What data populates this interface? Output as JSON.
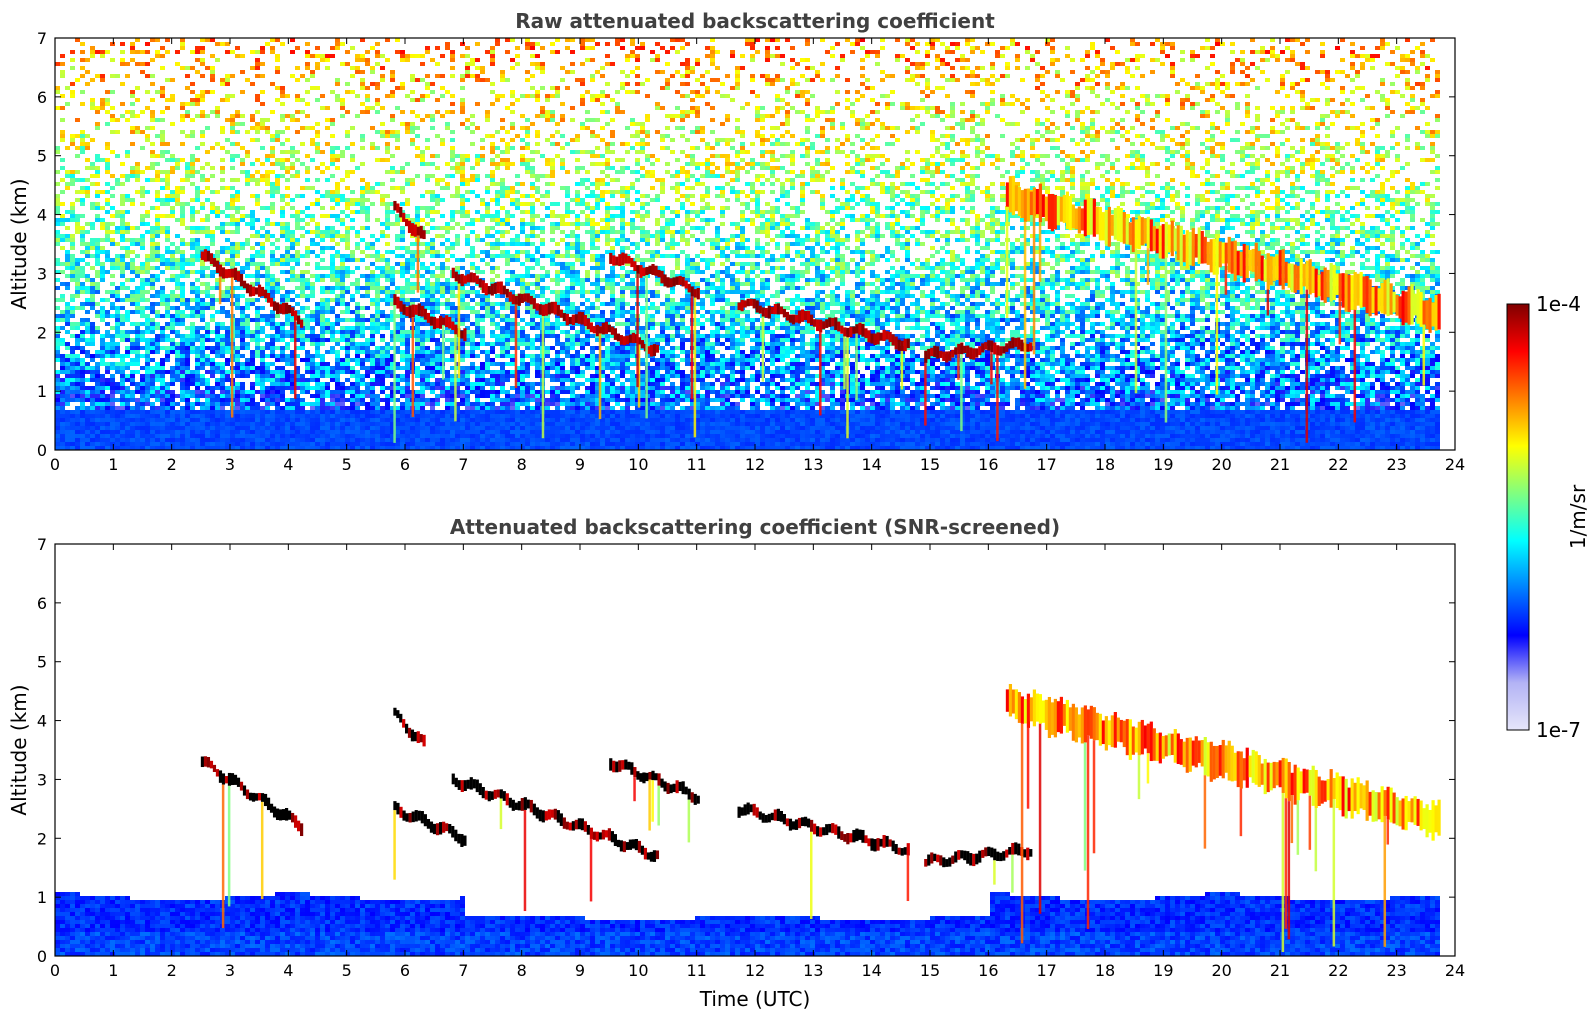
{
  "chart_data": [
    {
      "type": "heatmap",
      "title": "Raw attenuated backscattering coefficient",
      "xlabel": "",
      "ylabel": "Altitude (km)",
      "xlim": [
        0,
        24
      ],
      "ylim": [
        0,
        7
      ],
      "xticks": [
        "0",
        "1",
        "2",
        "3",
        "4",
        "5",
        "6",
        "7",
        "8",
        "9",
        "10",
        "11",
        "12",
        "13",
        "14",
        "15",
        "16",
        "17",
        "18",
        "19",
        "20",
        "21",
        "22",
        "23",
        "24"
      ],
      "yticks": [
        "0",
        "1",
        "2",
        "3",
        "4",
        "5",
        "6",
        "7"
      ],
      "data_end_time": 23.7,
      "noisy_background": true,
      "cloud_layers": [
        {
          "t": [
            2.5,
            4.2
          ],
          "alt_start": 3.3,
          "alt_end": 2.2,
          "intensity": "high"
        },
        {
          "t": [
            5.8,
            6.3
          ],
          "alt_start": 4.1,
          "alt_end": 3.6,
          "intensity": "high"
        },
        {
          "t": [
            5.8,
            7.0
          ],
          "alt_start": 2.5,
          "alt_end": 2.0,
          "intensity": "high"
        },
        {
          "t": [
            6.8,
            10.3
          ],
          "alt_start": 3.0,
          "alt_end": 1.7,
          "intensity": "high"
        },
        {
          "t": [
            9.5,
            11.0
          ],
          "alt_start": 3.3,
          "alt_end": 2.7,
          "intensity": "high"
        },
        {
          "t": [
            11.7,
            14.6
          ],
          "alt_start": 2.5,
          "alt_end": 1.8,
          "intensity": "high"
        },
        {
          "t": [
            14.9,
            16.7
          ],
          "alt_start": 1.6,
          "alt_end": 1.8,
          "intensity": "high"
        },
        {
          "t": [
            16.3,
            23.7
          ],
          "alt_start": 4.3,
          "alt_end": 2.3,
          "intensity": "medium"
        }
      ]
    },
    {
      "type": "heatmap",
      "title": "Attenuated backscattering coefficient (SNR-screened)",
      "xlabel": "Time (UTC)",
      "ylabel": "Altitude (km)",
      "xlim": [
        0,
        24
      ],
      "ylim": [
        0,
        7
      ],
      "xticks": [
        "0",
        "1",
        "2",
        "3",
        "4",
        "5",
        "6",
        "7",
        "8",
        "9",
        "10",
        "11",
        "12",
        "13",
        "14",
        "15",
        "16",
        "17",
        "18",
        "19",
        "20",
        "21",
        "22",
        "23",
        "24"
      ],
      "yticks": [
        "0",
        "1",
        "2",
        "3",
        "4",
        "5",
        "6",
        "7"
      ],
      "data_end_time": 23.7,
      "noisy_background": false,
      "boundary_layer_top_km": 1.0
    }
  ],
  "colorbar": {
    "label": "1/m/sr",
    "max_label": "1e-4",
    "min_label": "1e-7",
    "colors": [
      "#e6e6fa",
      "#b3b3f5",
      "#0000ff",
      "#0080ff",
      "#00ffff",
      "#80ff80",
      "#ffff00",
      "#ff8000",
      "#ff0000",
      "#800000"
    ]
  }
}
